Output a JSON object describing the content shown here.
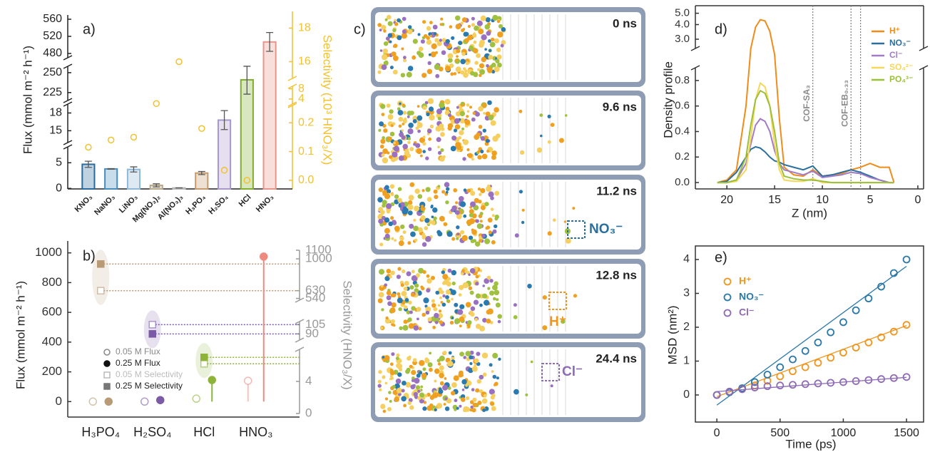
{
  "chart_data": [
    {
      "type": "bar",
      "panel_label": "a)",
      "ylabel": "Flux (mmol m⁻² h⁻¹)",
      "y2label": "Selectivity (10³ HNO₃/X)",
      "categories": [
        "KNO₃",
        "NaNO₃",
        "LiNO₃",
        "Mg(NO₃)₂",
        "Al(NO₃)₃",
        "H₃PO₄",
        "H₂SO₄",
        "HCl",
        "HNO₃"
      ],
      "values": [
        4.7,
        3.8,
        3.7,
        0.6,
        0.1,
        3.0,
        16.8,
        241,
        507
      ],
      "errors": [
        0.6,
        0.05,
        0.5,
        0.3,
        0,
        0.3,
        1.6,
        18,
        22
      ],
      "colors": [
        "#2a6a9c",
        "#4a8dbd",
        "#8db8da",
        "#b8a98a",
        "#b8b8b8",
        "#c89a6a",
        "#a896cc",
        "#7fae2e",
        "#e8958a"
      ],
      "y_segments": [
        {
          "ylim": [
            -0.1,
            8.1
          ],
          "yticks": [
            0,
            5
          ]
        },
        {
          "ylim": [
            13,
            19.5
          ],
          "yticks": [
            15,
            18
          ]
        },
        {
          "ylim": [
            215,
            258
          ],
          "yticks": [
            225,
            250
          ]
        },
        {
          "ylim": [
            470,
            570
          ],
          "yticks": [
            480,
            520,
            560
          ]
        }
      ],
      "y2values": [
        0.115,
        0.14,
        0.15,
        2.2,
        16,
        0.18,
        0.035,
        0,
        null
      ],
      "y2color": "#f2c12e",
      "y2_segments": [
        {
          "ylim": [
            -0.03,
            0.26
          ],
          "yticks": [
            {
              "value": 0,
              "label": "0.0"
            },
            0.1,
            0.2
          ]
        },
        {
          "ylim": [
            2,
            9
          ],
          "yticks": [
            4,
            8
          ]
        },
        {
          "ylim": [
            15,
            19
          ],
          "yticks": [
            16,
            18
          ]
        }
      ]
    },
    {
      "type": "lollipop",
      "panel_label": "b)",
      "ylabel": "Flux (mmol m⁻² h⁻¹)",
      "y2label": "Selectivity (HNO₃/X)",
      "categories": [
        "H₃PO₄",
        "H₂SO₄",
        "HCl",
        "HNO₃"
      ],
      "category_colors": [
        "#b89a74",
        "#7b5aa6",
        "#8db33a",
        "#ee8a80"
      ],
      "ylim": [
        -80,
        1080
      ],
      "yticks": [
        0,
        200,
        400,
        600,
        800,
        1000
      ],
      "y2color": "#999999",
      "y2_segments": [
        {
          "ylim": [
            0,
            8
          ],
          "yticks": [
            0,
            4
          ]
        },
        {
          "ylim": [
            80,
            110
          ],
          "yticks": [
            90,
            105
          ]
        },
        {
          "ylim": [
            520,
            1100
          ],
          "yticks": [
            540,
            630,
            1000,
            1100
          ]
        }
      ],
      "series": [
        {
          "name": "0.05 M Flux",
          "color": "#888888",
          "marker": "circle",
          "filled": false,
          "values": [
            0,
            0,
            20,
            140
          ]
        },
        {
          "name": "0.25 M Flux",
          "color": "#111111",
          "marker": "circle",
          "filled": true,
          "values": [
            0,
            10,
            145,
            975
          ]
        },
        {
          "name": "0.05 M Selectivity",
          "color": "#bbbbbb",
          "marker": "square",
          "filled": false,
          "axis": "y2",
          "values": [
            630,
            105,
            6.2,
            null
          ]
        },
        {
          "name": "0.25 M Selectivity",
          "color": "#777777",
          "marker": "square",
          "filled": true,
          "axis": "y2",
          "values": [
            940,
            90,
            7,
            null
          ]
        }
      ]
    },
    {
      "type": "line",
      "panel_label": "d)",
      "ylabel": "Density profile",
      "xlabel": "Z (nm)",
      "xlim": [
        23.3,
        -0.6
      ],
      "xticks": [
        20,
        15,
        10,
        5,
        0
      ],
      "y_segments": [
        {
          "ylim": [
            -0.05,
            0.9
          ],
          "yticks": [
            {
              "value": 0,
              "label": "0.0"
            },
            0.2,
            0.4,
            0.6,
            0.8
          ]
        },
        {
          "ylim": [
            2.5,
            5.8
          ],
          "scale": "log",
          "yticks": [
            {
              "value": 3,
              "label": "3.0"
            },
            {
              "value": 4,
              "label": "4.0"
            },
            {
              "value": 5,
              "label": "5.0"
            }
          ]
        }
      ],
      "vlines": [
        {
          "value": 11,
          "label": "COF-SA₃"
        },
        {
          "value": 7,
          "label": "COF-EB₀.₃₃"
        },
        {
          "value": 6
        }
      ],
      "x": [
        21,
        20,
        19,
        18,
        17.5,
        17,
        16.5,
        16,
        15.5,
        15,
        14.5,
        14,
        13,
        12,
        11,
        10,
        9,
        8,
        7,
        6,
        5,
        4,
        3,
        2.5
      ],
      "series": [
        {
          "name": "H⁺",
          "color": "#f08c1a",
          "values": [
            0,
            0.02,
            0.1,
            0.6,
            2.5,
            3.8,
            4.4,
            4.3,
            3.5,
            2.0,
            0.5,
            0.12,
            0.06,
            0.05,
            0.1,
            0.05,
            0.06,
            0.07,
            0.1,
            0.12,
            0.15,
            0.12,
            0.12,
            0
          ]
        },
        {
          "name": "NO₃⁻",
          "color": "#2a6f9e",
          "values": [
            0,
            0.01,
            0.08,
            0.2,
            0.26,
            0.28,
            0.27,
            0.24,
            0.2,
            0.17,
            0.16,
            0.14,
            0.12,
            0.1,
            0.13,
            0.05,
            0.06,
            0.08,
            0.1,
            0.08,
            0.05,
            0.02,
            0,
            0
          ]
        },
        {
          "name": "Cl⁻",
          "color": "#a07cc8",
          "values": [
            0,
            0,
            0.02,
            0.15,
            0.3,
            0.45,
            0.5,
            0.48,
            0.4,
            0.25,
            0.15,
            0.1,
            0.08,
            0.06,
            0.09,
            0.04,
            0.05,
            0.06,
            0.08,
            0.07,
            0.04,
            0.02,
            0,
            0
          ]
        },
        {
          "name": "SO₄²⁻",
          "color": "#f5d75a",
          "values": [
            0,
            0,
            0.01,
            0.1,
            0.35,
            0.65,
            0.78,
            0.75,
            0.6,
            0.3,
            0.1,
            0.02,
            0.01,
            0.01,
            0.03,
            0,
            0,
            0,
            0,
            0,
            0,
            0,
            0,
            0
          ]
        },
        {
          "name": "PO₄³⁻",
          "color": "#9cbf3a",
          "values": [
            0,
            0,
            0.02,
            0.2,
            0.45,
            0.65,
            0.72,
            0.7,
            0.6,
            0.4,
            0.15,
            0.05,
            0.03,
            0.02,
            0.02,
            0.01,
            0,
            0,
            0,
            0,
            0,
            0,
            0,
            0
          ]
        }
      ]
    },
    {
      "type": "scatter",
      "panel_label": "e)",
      "xlabel": "Time (ps)",
      "ylabel": "MSD (nm²)",
      "xlim": [
        -170,
        1635
      ],
      "xticks": [
        0,
        500,
        1000,
        1500
      ],
      "ylim": [
        -0.8,
        4.4
      ],
      "yticks": [
        0,
        1,
        2,
        3,
        4
      ],
      "x": [
        0,
        100,
        200,
        300,
        400,
        500,
        600,
        700,
        800,
        900,
        1000,
        1100,
        1200,
        1300,
        1400,
        1500
      ],
      "series": [
        {
          "name": "H⁺",
          "color": "#f0961e",
          "values": [
            0,
            0.1,
            0.18,
            0.28,
            0.42,
            0.55,
            0.7,
            0.82,
            0.95,
            1.1,
            1.25,
            1.4,
            1.55,
            1.7,
            1.87,
            2.07
          ],
          "fit": {
            "x": [
              0,
              1500
            ],
            "values": [
              -0.05,
              2.05
            ]
          }
        },
        {
          "name": "NO₃⁻",
          "color": "#2a78a8",
          "values": [
            0,
            0.08,
            0.2,
            0.38,
            0.6,
            0.82,
            1.05,
            1.3,
            1.55,
            1.85,
            2.15,
            2.5,
            2.85,
            3.2,
            3.6,
            4.0
          ],
          "fit": {
            "x": [
              0,
              1500
            ],
            "values": [
              -0.3,
              3.8
            ]
          }
        },
        {
          "name": "Cl⁻",
          "color": "#8e6bb5",
          "values": [
            0,
            0.1,
            0.17,
            0.22,
            0.26,
            0.28,
            0.3,
            0.32,
            0.34,
            0.36,
            0.38,
            0.41,
            0.44,
            0.47,
            0.5,
            0.53
          ],
          "fit": {
            "x": [
              0,
              1500
            ],
            "values": [
              0.1,
              0.52
            ]
          }
        }
      ]
    }
  ],
  "simulation": {
    "panel_label": "c)",
    "frames": [
      "0 ns",
      "9.6 ns",
      "11.2 ns",
      "12.8 ns",
      "24.4 ns"
    ],
    "ion_labels": [
      "NO₃⁻",
      "H⁺",
      "Cl⁻"
    ]
  }
}
